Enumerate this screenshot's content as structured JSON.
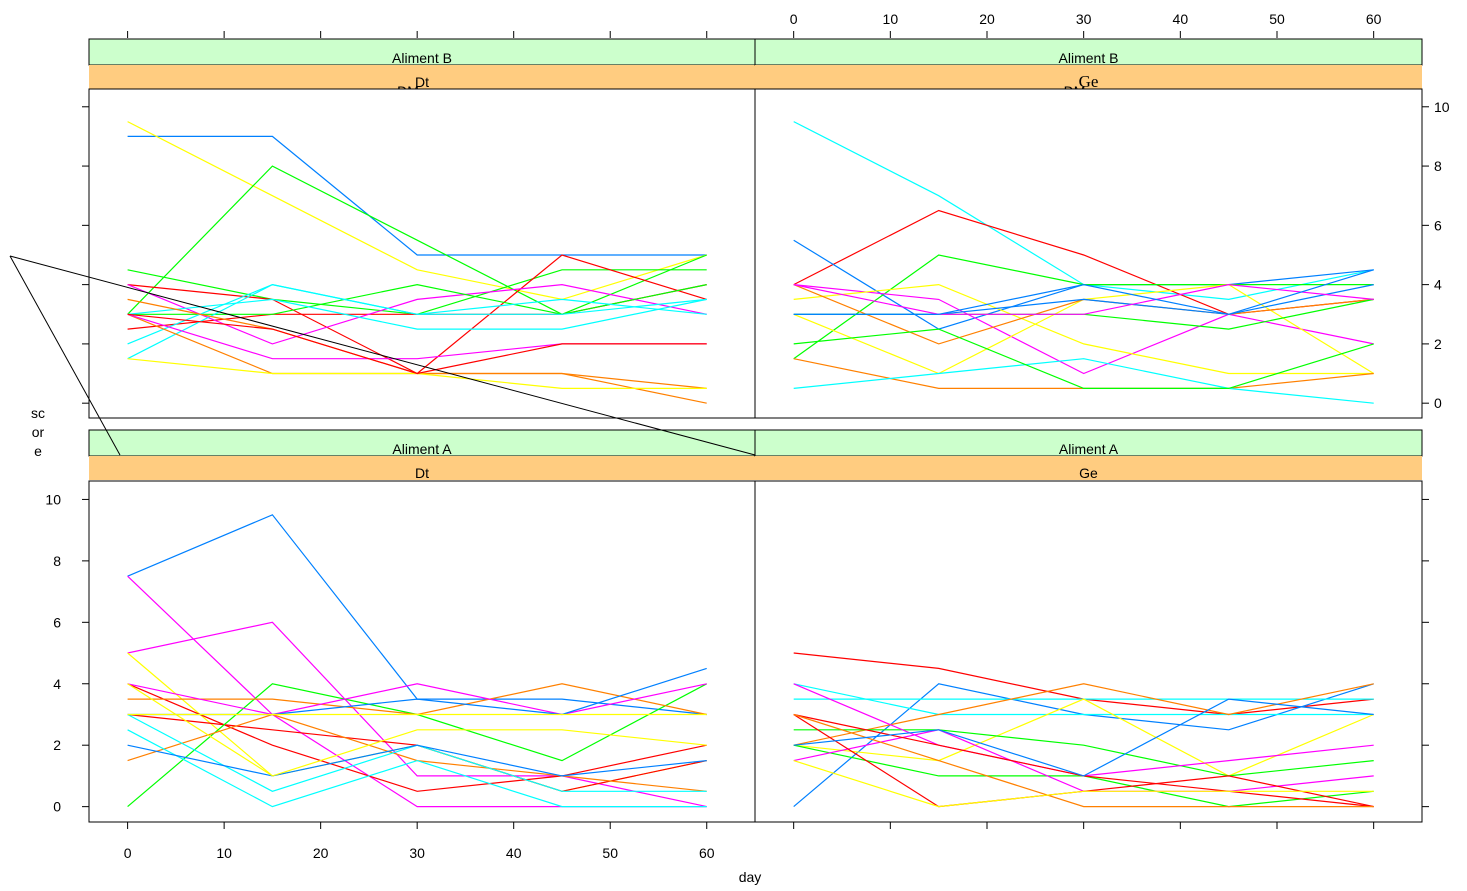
{
  "chart_data": {
    "type": "line",
    "xlabel": "day",
    "ylabel": "score",
    "ylabel_lines": [
      "sc",
      "or",
      "e"
    ],
    "x_ticks": [
      0,
      10,
      20,
      30,
      40,
      50,
      60
    ],
    "y_ticks": [
      0,
      2,
      4,
      6,
      8,
      10
    ],
    "xlim": [
      -4,
      65
    ],
    "ylim": [
      -0.5,
      10.6
    ],
    "colors": [
      "#0080ff",
      "#ff00ff",
      "#ff8000",
      "#00ff00",
      "#ffff00",
      "#00ffff",
      "#ff0000"
    ],
    "x": [
      0,
      15,
      30,
      45,
      60
    ],
    "panels": [
      {
        "aliment": "Aliment B",
        "product": "Dt",
        "product_extra": "DM",
        "product_serif": false,
        "series": [
          {
            "color": "#0080ff",
            "values": [
              9.0,
              9.0,
              5.0,
              5.0,
              5.0
            ]
          },
          {
            "color": "#ffff00",
            "values": [
              9.5,
              7.0,
              4.5,
              3.5,
              5.0
            ]
          },
          {
            "color": "#00ff00",
            "values": [
              3.0,
              8.0,
              5.5,
              3.0,
              5.0
            ]
          },
          {
            "color": "#00ff00",
            "values": [
              4.5,
              3.5,
              3.0,
              4.5,
              4.5
            ]
          },
          {
            "color": "#ff0000",
            "values": [
              4.0,
              3.5,
              1.0,
              5.0,
              3.5
            ]
          },
          {
            "color": "#ff0000",
            "values": [
              2.5,
              3.0,
              3.0,
              3.0,
              4.0
            ]
          },
          {
            "color": "#ff00ff",
            "values": [
              4.0,
              2.0,
              3.5,
              4.0,
              3.0
            ]
          },
          {
            "color": "#00ff00",
            "values": [
              3.0,
              3.0,
              4.0,
              3.0,
              4.0
            ]
          },
          {
            "color": "#00ffff",
            "values": [
              2.0,
              4.0,
              3.0,
              3.5,
              3.0
            ]
          },
          {
            "color": "#00ffff",
            "values": [
              3.0,
              3.5,
              2.5,
              2.5,
              3.5
            ]
          },
          {
            "color": "#00ffff",
            "values": [
              1.5,
              4.0,
              3.0,
              3.0,
              3.5
            ]
          },
          {
            "color": "#ff8000",
            "values": [
              3.5,
              2.5,
              1.0,
              1.0,
              0.5
            ]
          },
          {
            "color": "#ff8000",
            "values": [
              3.0,
              1.0,
              1.0,
              1.0,
              0.0
            ]
          },
          {
            "color": "#ffff00",
            "values": [
              1.5,
              1.0,
              1.0,
              0.5,
              0.5
            ]
          },
          {
            "color": "#ff00ff",
            "values": [
              3.0,
              1.5,
              1.5,
              2.0,
              2.0
            ]
          },
          {
            "color": "#ff0000",
            "values": [
              3.0,
              2.5,
              1.0,
              2.0,
              2.0
            ]
          }
        ]
      },
      {
        "aliment": "Aliment B",
        "product": "Ge",
        "product_extra": "DM",
        "product_serif": true,
        "series": [
          {
            "color": "#00ffff",
            "values": [
              9.5,
              7.0,
              4.0,
              3.5,
              4.5
            ]
          },
          {
            "color": "#ff0000",
            "values": [
              4.0,
              6.5,
              5.0,
              3.0,
              3.5
            ]
          },
          {
            "color": "#0080ff",
            "values": [
              5.5,
              2.5,
              4.0,
              4.0,
              4.5
            ]
          },
          {
            "color": "#00ff00",
            "values": [
              1.5,
              5.0,
              4.0,
              4.0,
              4.0
            ]
          },
          {
            "color": "#ff00ff",
            "values": [
              4.0,
              3.5,
              1.0,
              3.0,
              2.0
            ]
          },
          {
            "color": "#ffff00",
            "values": [
              3.5,
              4.0,
              2.0,
              1.0,
              1.0
            ]
          },
          {
            "color": "#ffff00",
            "values": [
              3.0,
              1.0,
              3.5,
              4.0,
              1.0
            ]
          },
          {
            "color": "#ff8000",
            "values": [
              4.0,
              2.0,
              3.5,
              3.0,
              3.5
            ]
          },
          {
            "color": "#ff8000",
            "values": [
              1.5,
              0.5,
              0.5,
              0.5,
              1.0
            ]
          },
          {
            "color": "#00ffff",
            "values": [
              0.5,
              1.0,
              1.5,
              0.5,
              0.0
            ]
          },
          {
            "color": "#00ff00",
            "values": [
              3.0,
              3.0,
              3.0,
              2.5,
              3.5
            ]
          },
          {
            "color": "#00ff00",
            "values": [
              2.0,
              2.5,
              0.5,
              0.5,
              2.0
            ]
          },
          {
            "color": "#0080ff",
            "values": [
              3.0,
              3.0,
              3.5,
              3.0,
              4.0
            ]
          },
          {
            "color": "#ff00ff",
            "values": [
              4.0,
              3.0,
              3.0,
              4.0,
              3.5
            ]
          },
          {
            "color": "#0080ff",
            "values": [
              3.0,
              3.0,
              4.0,
              3.0,
              4.5
            ]
          }
        ]
      },
      {
        "aliment": "Aliment A",
        "product": "Dt",
        "product_extra": "",
        "product_serif": false,
        "series": [
          {
            "color": "#0080ff",
            "values": [
              7.5,
              9.5,
              3.5,
              3.5,
              3.0
            ]
          },
          {
            "color": "#ff00ff",
            "values": [
              7.5,
              3.0,
              0.0,
              0.0,
              0.0
            ]
          },
          {
            "color": "#ff00ff",
            "values": [
              5.0,
              6.0,
              1.0,
              1.0,
              0.0
            ]
          },
          {
            "color": "#ffff00",
            "values": [
              5.0,
              1.0,
              2.0,
              0.5,
              1.5
            ]
          },
          {
            "color": "#ff0000",
            "values": [
              4.0,
              2.0,
              0.5,
              1.0,
              2.0
            ]
          },
          {
            "color": "#ff0000",
            "values": [
              3.0,
              2.5,
              2.0,
              0.5,
              1.5
            ]
          },
          {
            "color": "#00ff00",
            "values": [
              0.0,
              4.0,
              3.0,
              1.5,
              4.0
            ]
          },
          {
            "color": "#ff8000",
            "values": [
              3.5,
              3.5,
              3.0,
              4.0,
              3.0
            ]
          },
          {
            "color": "#ff8000",
            "values": [
              1.5,
              3.0,
              1.5,
              1.0,
              0.5
            ]
          },
          {
            "color": "#00ffff",
            "values": [
              2.5,
              0.0,
              1.5,
              0.0,
              0.0
            ]
          },
          {
            "color": "#00ffff",
            "values": [
              3.0,
              0.5,
              2.0,
              0.5,
              0.5
            ]
          },
          {
            "color": "#0080ff",
            "values": [
              2.0,
              1.0,
              2.0,
              1.0,
              1.5
            ]
          },
          {
            "color": "#ff00ff",
            "values": [
              4.0,
              3.0,
              4.0,
              3.0,
              4.0
            ]
          },
          {
            "color": "#ffff00",
            "values": [
              4.0,
              1.0,
              2.5,
              2.5,
              2.0
            ]
          },
          {
            "color": "#0080ff",
            "values": [
              3.0,
              3.0,
              3.5,
              3.0,
              4.5
            ]
          },
          {
            "color": "#ffff00",
            "values": [
              3.0,
              3.0,
              3.0,
              3.0,
              3.0
            ]
          }
        ]
      },
      {
        "aliment": "Aliment A",
        "product": "Ge",
        "product_extra": "",
        "product_serif": false,
        "series": [
          {
            "color": "#ff0000",
            "values": [
              5.0,
              4.5,
              3.5,
              3.0,
              3.5
            ]
          },
          {
            "color": "#0080ff",
            "values": [
              0.0,
              4.0,
              3.0,
              2.5,
              4.0
            ]
          },
          {
            "color": "#00ffff",
            "values": [
              3.5,
              3.5,
              3.5,
              3.5,
              3.5
            ]
          },
          {
            "color": "#00ffff",
            "values": [
              4.0,
              3.0,
              3.0,
              3.0,
              3.0
            ]
          },
          {
            "color": "#ff8000",
            "values": [
              2.0,
              3.0,
              4.0,
              3.0,
              4.0
            ]
          },
          {
            "color": "#ffff00",
            "values": [
              2.0,
              1.5,
              3.5,
              1.0,
              3.0
            ]
          },
          {
            "color": "#00ff00",
            "values": [
              2.5,
              2.5,
              2.0,
              1.0,
              1.5
            ]
          },
          {
            "color": "#00ff00",
            "values": [
              2.0,
              1.0,
              1.0,
              0.0,
              0.5
            ]
          },
          {
            "color": "#ff00ff",
            "values": [
              1.5,
              2.5,
              0.5,
              0.5,
              1.0
            ]
          },
          {
            "color": "#ff00ff",
            "values": [
              4.0,
              2.0,
              1.0,
              1.5,
              2.0
            ]
          },
          {
            "color": "#ff0000",
            "values": [
              3.0,
              0.0,
              0.5,
              1.0,
              0.0
            ]
          },
          {
            "color": "#ff0000",
            "values": [
              3.0,
              2.0,
              1.0,
              0.5,
              0.0
            ]
          },
          {
            "color": "#ff8000",
            "values": [
              3.0,
              1.5,
              0.0,
              0.0,
              0.0
            ]
          },
          {
            "color": "#ffff00",
            "values": [
              1.5,
              0.0,
              0.5,
              0.5,
              0.5
            ]
          },
          {
            "color": "#0080ff",
            "values": [
              2.0,
              2.5,
              1.0,
              3.5,
              3.0
            ]
          }
        ]
      }
    ]
  }
}
